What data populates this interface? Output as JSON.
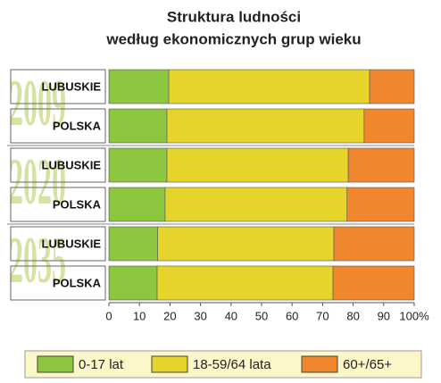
{
  "chart_data": {
    "type": "stacked-bar-horizontal",
    "title": [
      "Struktura ludności",
      "według ekonomicznych grup wieku"
    ],
    "groups": [
      "2009",
      "2020",
      "2035"
    ],
    "categories": [
      "LUBUSKIE",
      "POLSKA",
      "LUBUSKIE",
      "POLSKA",
      "LUBUSKIE",
      "POLSKA"
    ],
    "series": [
      {
        "name": "0-17 lat",
        "color": "#8dc63f",
        "values": [
          19.6,
          19,
          19,
          18.4,
          16,
          15.8
        ]
      },
      {
        "name": "18-59/64 lata",
        "color": "#e6d42a",
        "values": [
          65.8,
          64.6,
          59.4,
          59.6,
          57.7,
          57.6
        ]
      },
      {
        "name": "60+/65+",
        "color": "#f0862e",
        "values": [
          14.6,
          16.4,
          21.6,
          22,
          26.3,
          26.6
        ]
      }
    ],
    "xlim": [
      0,
      100
    ],
    "xticks": [
      0,
      10,
      20,
      30,
      40,
      50,
      60,
      70,
      80,
      90,
      {
        "value": 100,
        "label": "100%"
      }
    ],
    "grid": false,
    "legend": "bottom"
  }
}
